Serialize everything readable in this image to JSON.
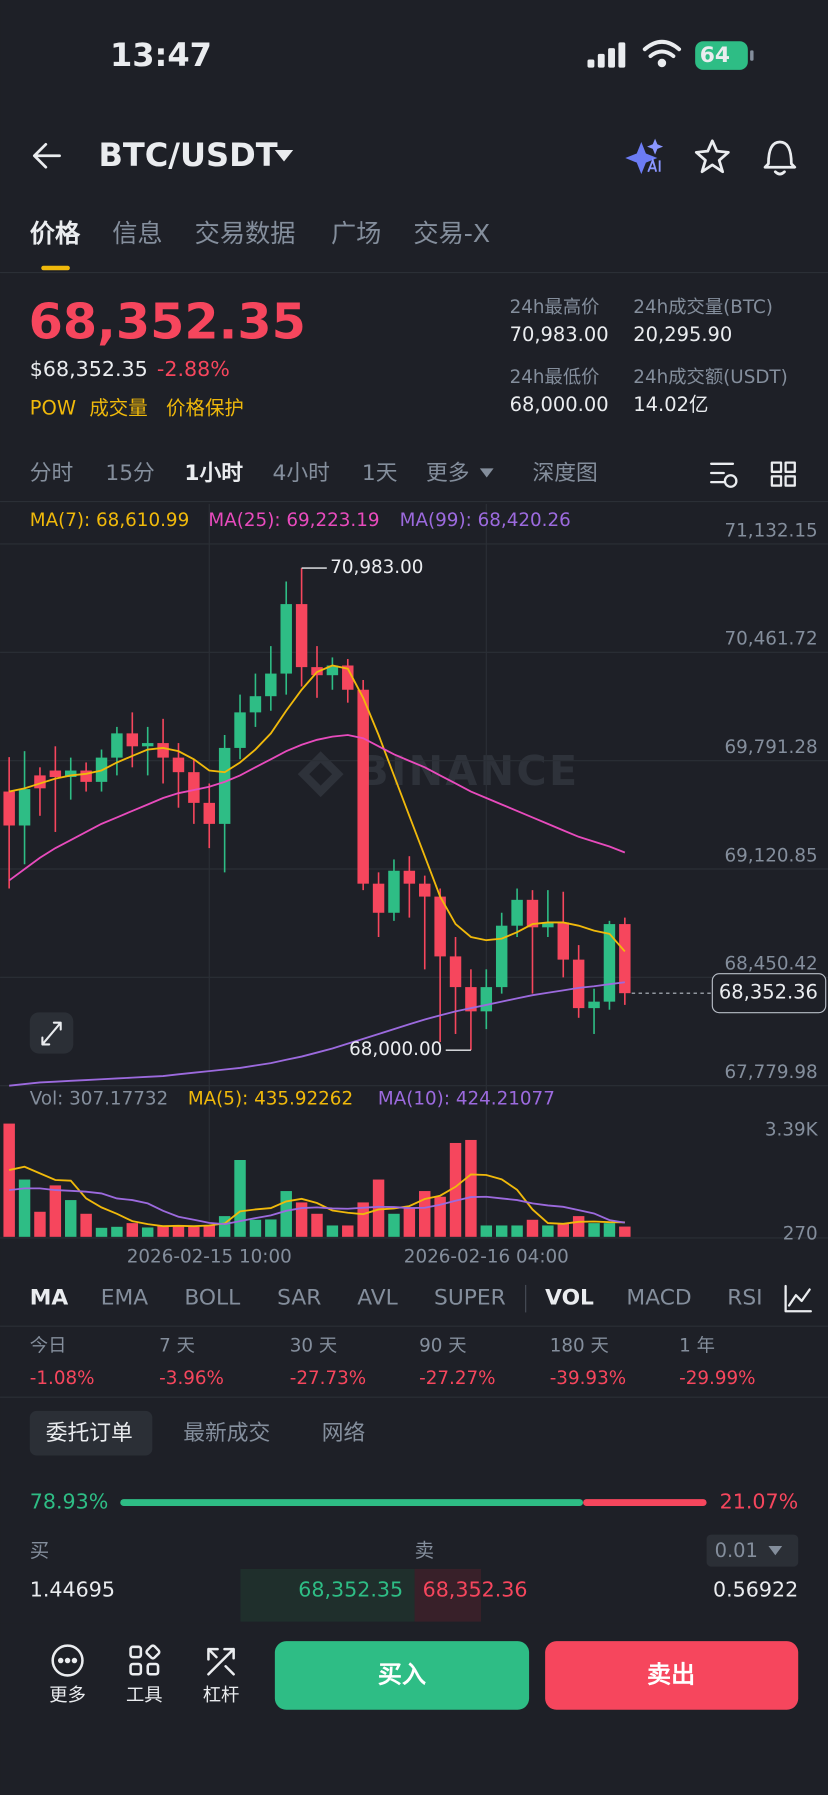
{
  "status_bar": {
    "time": "13:47",
    "battery": "64"
  },
  "header": {
    "pair": "BTC/USDT"
  },
  "tabs": [
    "价格",
    "信息",
    "交易数据",
    "广场",
    "交易-X"
  ],
  "price": {
    "last": "68,352.35",
    "usd": "$68,352.35",
    "change": "-2.88%",
    "tags": [
      "POW",
      "成交量",
      "价格保护"
    ]
  },
  "stats": [
    {
      "label": "24h最高价",
      "value": "70,983.00"
    },
    {
      "label": "24h成交量(BTC)",
      "value": "20,295.90"
    },
    {
      "label": "24h最低价",
      "value": "68,000.00"
    },
    {
      "label": "24h成交额(USDT)",
      "value": "14.02亿"
    }
  ],
  "intervals": [
    "分时",
    "15分",
    "1小时",
    "4小时",
    "1天",
    "更多",
    "深度图"
  ],
  "chart_data": [
    {
      "type": "candlestick",
      "up_color": "#2ebd85",
      "down_color": "#f6465d",
      "grid": true,
      "watermark": "BINANCE",
      "series": [
        {
          "name": "MA(7): 68,610.99",
          "color": "#f0b90b",
          "values": [
            69600,
            69620,
            69650,
            69680,
            69700,
            69710,
            69730,
            69780,
            69820,
            69860,
            69870,
            69850,
            69800,
            69730,
            69720,
            69780,
            69860,
            69960,
            70100,
            70230,
            70340,
            70380,
            70360,
            70180,
            69950,
            69700,
            69450,
            69200,
            68950,
            68780,
            68700,
            68680,
            68690,
            68730,
            68780,
            68790,
            68790,
            68770,
            68740,
            68720,
            68610.99
          ]
        },
        {
          "name": "MA(25): 69,223.19",
          "color": "#e84bbd",
          "values": [
            69050,
            69120,
            69190,
            69250,
            69300,
            69350,
            69400,
            69440,
            69480,
            69520,
            69560,
            69590,
            69610,
            69630,
            69660,
            69700,
            69750,
            69800,
            69850,
            69890,
            69920,
            69940,
            69950,
            69930,
            69880,
            69830,
            69790,
            69750,
            69700,
            69650,
            69600,
            69560,
            69520,
            69480,
            69440,
            69400,
            69360,
            69320,
            69290,
            69260,
            69223.19
          ]
        },
        {
          "name": "MA(99): 68,420.26",
          "color": "#9c6ade",
          "values": [
            67780,
            67790,
            67800,
            67805,
            67810,
            67815,
            67820,
            67825,
            67830,
            67835,
            67840,
            67850,
            67860,
            67870,
            67880,
            67890,
            67905,
            67920,
            67940,
            67960,
            67985,
            68010,
            68040,
            68070,
            68100,
            68130,
            68160,
            68190,
            68215,
            68240,
            68260,
            68280,
            68300,
            68320,
            68340,
            68355,
            68370,
            68385,
            68395,
            68408,
            68420.26
          ]
        }
      ],
      "open": [
        69600,
        69390,
        69700,
        69730,
        69690,
        69730,
        69660,
        69810,
        69960,
        69880,
        69900,
        69810,
        69720,
        69530,
        69400,
        69870,
        70090,
        70190,
        70330,
        70760,
        70370,
        70320,
        70380,
        70230,
        69030,
        68850,
        69110,
        69030,
        68950,
        68580,
        68390,
        68240,
        68390,
        68770,
        68930,
        68760,
        68790,
        68560,
        68260,
        68300,
        68780
      ],
      "high": [
        69813,
        69850,
        69750,
        69880,
        69810,
        69780,
        69860,
        70000,
        70090,
        70000,
        70050,
        69900,
        69800,
        69650,
        69950,
        70200,
        70330,
        70500,
        70900,
        70983,
        70500,
        70430,
        70420,
        70290,
        69100,
        69180,
        69200,
        69080,
        69000,
        68700,
        68500,
        68500,
        68850,
        69000,
        68990,
        68990,
        68980,
        68650,
        68380,
        68800,
        68820
      ],
      "low": [
        69000,
        69150,
        69450,
        69350,
        69550,
        69600,
        69600,
        69700,
        69750,
        69700,
        69650,
        69500,
        69400,
        69250,
        69100,
        69800,
        70000,
        70100,
        70200,
        70250,
        70180,
        70230,
        70150,
        68990,
        68700,
        68800,
        68820,
        68500,
        68050,
        68100,
        68000,
        68130,
        68350,
        68700,
        68350,
        68700,
        68450,
        68200,
        68100,
        68250,
        68280
      ],
      "close": [
        69390,
        69615,
        69620,
        69690,
        69730,
        69660,
        69810,
        69960,
        69880,
        69900,
        69810,
        69720,
        69530,
        69400,
        69870,
        70090,
        70190,
        70330,
        70760,
        70370,
        70320,
        70380,
        70230,
        69030,
        68850,
        69110,
        69030,
        68950,
        68580,
        68390,
        68240,
        68390,
        68770,
        68930,
        68760,
        68790,
        68560,
        68260,
        68300,
        68780,
        68352.36
      ],
      "ylim": [
        67766,
        71380
      ],
      "yticks": [
        {
          "value": 71132.15,
          "label": "71,132.15"
        },
        {
          "value": 70461.72,
          "label": "70,461.72"
        },
        {
          "value": 69791.28,
          "label": "69,791.28"
        },
        {
          "value": 69120.85,
          "label": "69,120.85"
        },
        {
          "value": 68450.42,
          "label": "68,450.42"
        },
        {
          "value": 67779.98,
          "label": "67,779.98"
        }
      ],
      "xticks": [
        {
          "value": 13,
          "label": "2026-02-15 10:00"
        },
        {
          "value": 31,
          "label": "2026-02-16 04:00"
        }
      ],
      "high_label": {
        "value": 70983,
        "label": "70,983.00"
      },
      "low_label": {
        "value": 68000,
        "label": "68,000.00"
      },
      "last_price": {
        "value": 68352.36,
        "label": "68,352.36"
      }
    },
    {
      "type": "bar",
      "title": "Vol: 307.17732",
      "values": [
        3390,
        1715,
        750,
        1540,
        1100,
        690,
        270,
        300,
        410,
        280,
        340,
        350,
        300,
        340,
        620,
        2300,
        510,
        520,
        1370,
        1030,
        690,
        340,
        340,
        1030,
        1715,
        690,
        860,
        1370,
        1200,
        2810,
        2900,
        340,
        340,
        340,
        510,
        340,
        410,
        620,
        410,
        410,
        307.17732
      ],
      "series": [
        {
          "name": "MA(5): 435.92262",
          "color": "#f0b90b",
          "values": [
            2000,
            2100,
            1900,
            1700,
            1680,
            1150,
            880,
            690,
            470,
            380,
            320,
            330,
            320,
            340,
            400,
            760,
            820,
            860,
            1060,
            1140,
            1010,
            790,
            720,
            680,
            820,
            850,
            920,
            1130,
            1230,
            1500,
            1870,
            1850,
            1720,
            1410,
            820,
            410,
            390,
            450,
            460,
            440,
            435.92262
          ]
        },
        {
          "name": "MA(10): 424.21077",
          "color": "#9c6ade",
          "values": [
            1400,
            1450,
            1450,
            1400,
            1380,
            1350,
            1300,
            1150,
            1100,
            1000,
            780,
            600,
            510,
            420,
            380,
            470,
            560,
            640,
            780,
            860,
            880,
            850,
            840,
            870,
            900,
            890,
            860,
            870,
            960,
            1080,
            1190,
            1200,
            1150,
            1100,
            1000,
            940,
            900,
            800,
            700,
            500,
            424.21077
          ]
        }
      ],
      "ylim": [
        0,
        3600
      ],
      "yticks": [
        {
          "value": 3390,
          "label": "3.39K"
        },
        270
      ]
    }
  ],
  "indicators": [
    "MA",
    "EMA",
    "BOLL",
    "SAR",
    "AVL",
    "SUPER",
    "VOL",
    "MACD",
    "RSI"
  ],
  "performance": [
    {
      "label": "今日",
      "value": "-1.08%"
    },
    {
      "label": "7 天",
      "value": "-3.96%"
    },
    {
      "label": "30 天",
      "value": "-27.73%"
    },
    {
      "label": "90 天",
      "value": "-27.27%"
    },
    {
      "label": "180 天",
      "value": "-39.93%"
    },
    {
      "label": "1 年",
      "value": "-29.99%"
    }
  ],
  "order_tabs": [
    "委托订单",
    "最新成交",
    "网络"
  ],
  "ratio": {
    "buy": {
      "value": 78.93,
      "label": "78.93%"
    },
    "sell": {
      "value": 21.07,
      "label": "21.07%"
    }
  },
  "order_book": {
    "buy_header": "买",
    "sell_header": "卖",
    "precision": "0.01",
    "rows": [
      {
        "bid_qty": "1.44695",
        "bid": "68,352.35",
        "ask": "68,352.36",
        "ask_qty": "0.56922"
      }
    ]
  },
  "bottom_bar": {
    "actions": [
      "更多",
      "工具",
      "杠杆"
    ],
    "buy": "买入",
    "sell": "卖出"
  }
}
